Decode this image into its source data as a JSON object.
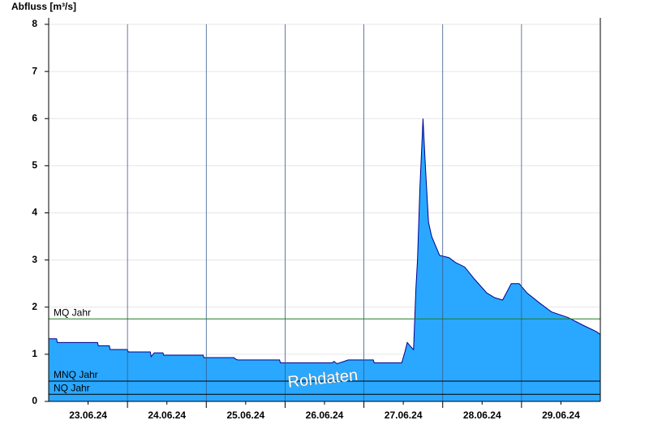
{
  "chart_data": {
    "type": "area",
    "y_label": "Abfluss [m³/s]",
    "annotation": "Rohdaten",
    "color": "#2aa8ff",
    "line_color": "#00008b",
    "grid": true,
    "ylim": [
      0,
      8
    ],
    "yticks": [
      0,
      1,
      2,
      3,
      4,
      5,
      6,
      7,
      8
    ],
    "xlim": [
      0,
      7
    ],
    "xticks": [
      {
        "value": 0.5,
        "label": "23.06.24"
      },
      {
        "value": 1.5,
        "label": "24.06.24"
      },
      {
        "value": 2.5,
        "label": "25.06.24"
      },
      {
        "value": 3.5,
        "label": "26.06.24"
      },
      {
        "value": 4.5,
        "label": "27.06.24"
      },
      {
        "value": 5.5,
        "label": "28.06.24"
      },
      {
        "value": 6.5,
        "label": "29.06.24"
      }
    ],
    "xgrid": [
      1,
      2,
      3,
      4,
      5,
      6
    ],
    "x": [
      0,
      0.1,
      0.11,
      0.62,
      0.63,
      0.77,
      0.78,
      1.0,
      1.01,
      1.29,
      1.3,
      1.34,
      1.45,
      1.46,
      1.96,
      1.97,
      2.35,
      2.38,
      2.4,
      2.93,
      2.94,
      3.6,
      3.62,
      3.66,
      3.75,
      3.8,
      4.12,
      4.13,
      4.48,
      4.52,
      4.55,
      4.6,
      4.63,
      4.66,
      4.68,
      4.71,
      4.75,
      4.78,
      4.82,
      4.86,
      4.96,
      5.08,
      5.16,
      5.28,
      5.4,
      5.56,
      5.66,
      5.76,
      5.87,
      5.97,
      6.07,
      6.22,
      6.38,
      6.59,
      6.8,
      6.95,
      7.0
    ],
    "values": [
      1.33,
      1.33,
      1.25,
      1.25,
      1.18,
      1.18,
      1.1,
      1.1,
      1.05,
      1.05,
      0.95,
      1.03,
      1.03,
      0.98,
      0.98,
      0.93,
      0.93,
      0.89,
      0.88,
      0.88,
      0.82,
      0.82,
      0.85,
      0.8,
      0.85,
      0.88,
      0.88,
      0.82,
      0.82,
      1.05,
      1.25,
      1.15,
      1.1,
      2.4,
      3.0,
      4.5,
      6.0,
      5.0,
      3.8,
      3.5,
      3.1,
      3.05,
      2.95,
      2.85,
      2.6,
      2.3,
      2.2,
      2.15,
      2.5,
      2.5,
      2.3,
      2.1,
      1.9,
      1.78,
      1.6,
      1.48,
      1.42
    ],
    "ref_lines": [
      {
        "name": "MQ Jahr",
        "value": 1.75,
        "color": "#1e7a1e"
      },
      {
        "name": "MNQ Jahr",
        "value": 0.43,
        "color": "#000000"
      },
      {
        "name": "NQ Jahr",
        "value": 0.15,
        "color": "#000000"
      }
    ]
  }
}
